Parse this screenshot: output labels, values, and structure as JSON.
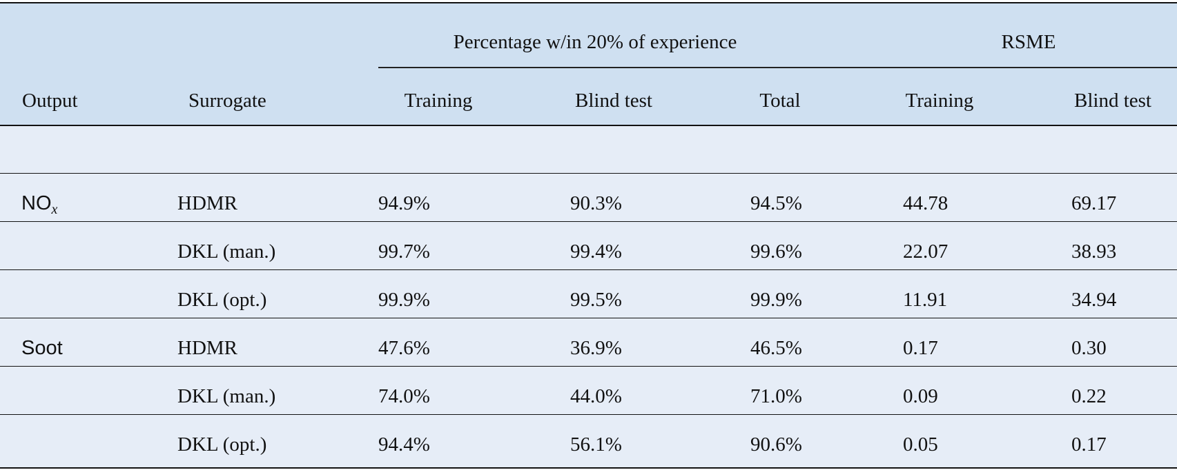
{
  "header": {
    "group_pct": "Percentage w/in 20% of experience",
    "group_rsme": "RSME",
    "col_output": "Output",
    "col_surrogate": "Surrogate",
    "col_training": "Training",
    "col_blind": "Blind test",
    "col_total": "Total",
    "col_rsme_training": "Training",
    "col_rsme_blind": "Blind test"
  },
  "rows": [
    {
      "output": "NO",
      "output_sub": "x",
      "surrogate": "HDMR",
      "training": "94.9%",
      "blind": "90.3%",
      "total": "94.5%",
      "rsme_training": "44.78",
      "rsme_blind": "69.17"
    },
    {
      "output": "",
      "surrogate": "DKL (man.)",
      "training": "99.7%",
      "blind": "99.4%",
      "total": "99.6%",
      "rsme_training": "22.07",
      "rsme_blind": "38.93"
    },
    {
      "output": "",
      "surrogate": "DKL (opt.)",
      "training": "99.9%",
      "blind": "99.5%",
      "total": "99.9%",
      "rsme_training": "11.91",
      "rsme_blind": "34.94"
    },
    {
      "output": "Soot",
      "surrogate": "HDMR",
      "training": "47.6%",
      "blind": "36.9%",
      "total": "46.5%",
      "rsme_training": "0.17",
      "rsme_blind": "0.30"
    },
    {
      "output": "",
      "surrogate": "DKL (man.)",
      "training": "74.0%",
      "blind": "44.0%",
      "total": "71.0%",
      "rsme_training": "0.09",
      "rsme_blind": "0.22"
    },
    {
      "output": "",
      "surrogate": "DKL (opt.)",
      "training": "94.4%",
      "blind": "56.1%",
      "total": "90.6%",
      "rsme_training": "0.05",
      "rsme_blind": "0.17"
    }
  ]
}
